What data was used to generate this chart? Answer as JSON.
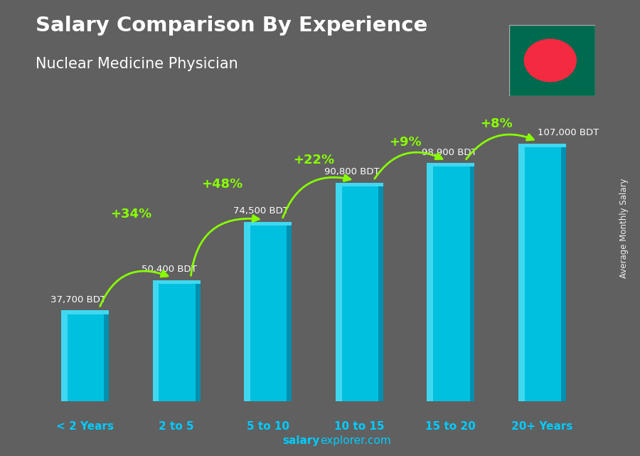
{
  "title_line1": "Salary Comparison By Experience",
  "title_line2": "Nuclear Medicine Physician",
  "categories": [
    "< 2 Years",
    "2 to 5",
    "5 to 10",
    "10 to 15",
    "15 to 20",
    "20+ Years"
  ],
  "values": [
    37700,
    50400,
    74500,
    90800,
    98900,
    107000
  ],
  "labels": [
    "37,700 BDT",
    "50,400 BDT",
    "74,500 BDT",
    "90,800 BDT",
    "98,900 BDT",
    "107,000 BDT"
  ],
  "pct_changes": [
    "+34%",
    "+48%",
    "+22%",
    "+9%",
    "+8%"
  ],
  "bar_color_main": "#00c0e0",
  "bar_color_light": "#40d8f0",
  "bar_color_dark": "#0090b0",
  "bg_color": "#606060",
  "title_color": "#ffffff",
  "label_color": "#ffffff",
  "pct_color": "#88ff00",
  "xlabel_color": "#00ccff",
  "ylabel_text": "Average Monthly Salary",
  "footer_salary": "salary",
  "footer_rest": "explorer.com",
  "footer_color": "#00ccff",
  "ylim_max": 125000,
  "bar_width": 0.52,
  "arrow_color": "#88ff00"
}
